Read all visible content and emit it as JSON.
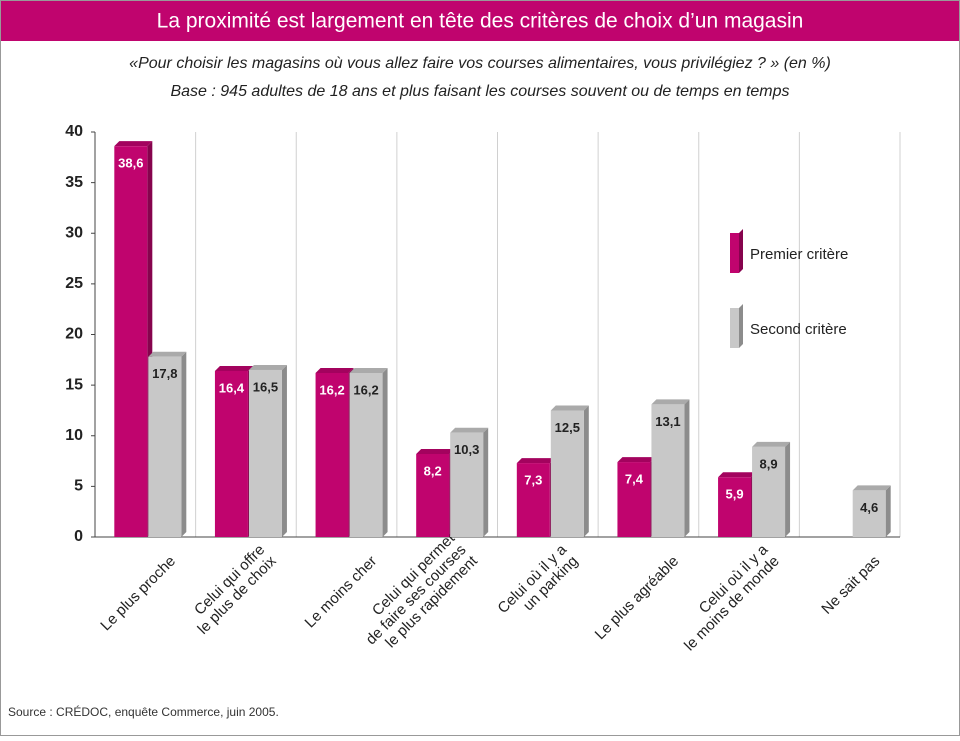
{
  "chart_data": {
    "type": "bar",
    "title": "La proximité est largement en tête des critères de choix d’un magasin",
    "subtitle": [
      "«Pour choisir les magasins où vous allez faire vos courses alimentaires, vous privilégiez ? » (en %)",
      "Base : 945 adultes de 18 ans et plus faisant les courses souvent ou de temps en temps"
    ],
    "source": "Source : CRÉDOC, enquête Commerce, juin 2005.",
    "categories": [
      [
        "Le plus proche"
      ],
      [
        "Celui qui offre",
        "le plus de choix"
      ],
      [
        "Le moins cher"
      ],
      [
        "Celui qui permet",
        "de faire ses courses",
        "le plus rapidement"
      ],
      [
        "Celui où il y a",
        "un parking"
      ],
      [
        "Le plus agréable"
      ],
      [
        "Celui où il y a",
        "le moins de monde"
      ],
      [
        "Ne sait pas"
      ]
    ],
    "series": [
      {
        "name": "Premier critère",
        "color": "#c0046e",
        "values": [
          38.6,
          16.4,
          16.2,
          8.2,
          7.3,
          7.4,
          5.9,
          null
        ],
        "value_labels": [
          "38,6",
          "16,4",
          "16,2",
          "8,2",
          "7,3",
          "7,4",
          "5,9",
          null
        ]
      },
      {
        "name": "Second critère",
        "color": "#c8c8c8",
        "values": [
          17.8,
          16.5,
          16.2,
          10.3,
          12.5,
          13.1,
          8.9,
          4.6
        ],
        "value_labels": [
          "17,8",
          "16,5",
          "16,2",
          "10,3",
          "12,5",
          "13,1",
          "8,9",
          "4,6"
        ]
      }
    ],
    "ylim": [
      0,
      40
    ],
    "yticks": [
      0,
      5,
      10,
      15,
      20,
      25,
      30,
      35,
      40
    ],
    "grid": true,
    "legend": "right"
  }
}
